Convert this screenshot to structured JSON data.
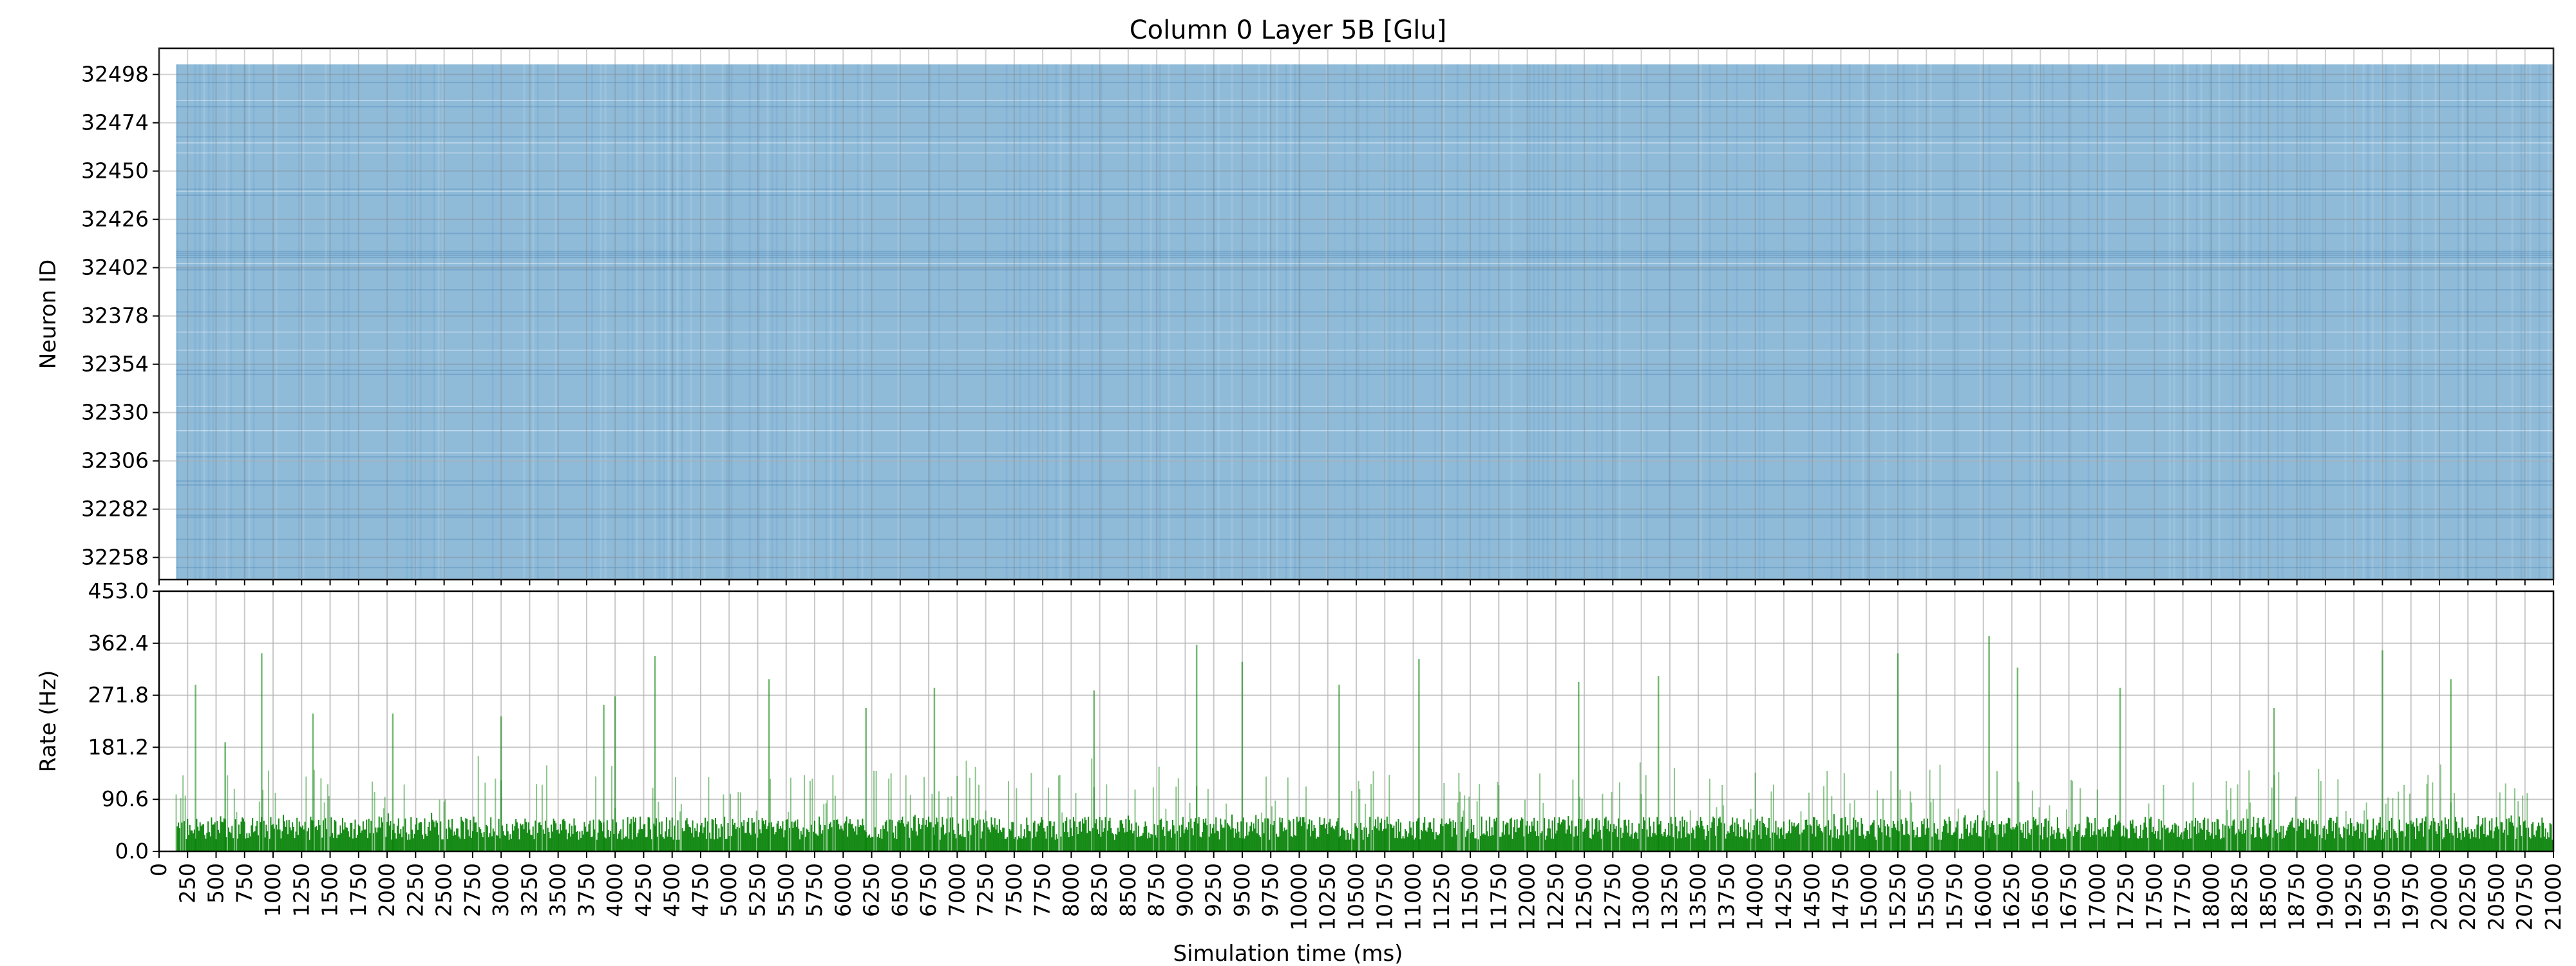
{
  "chart_data": [
    {
      "type": "scatter",
      "title": "Column 0 Layer 5B [Glu]",
      "xlabel": "",
      "ylabel": "Neuron ID",
      "ylim": [
        32247,
        32511
      ],
      "neuron_range": [
        32247,
        32503
      ],
      "time_range": [
        150,
        21000
      ],
      "yticks": [
        32258,
        32282,
        32306,
        32330,
        32354,
        32378,
        32402,
        32426,
        32450,
        32474,
        32498
      ],
      "grid": true,
      "marker_color": "#1f77b4"
    },
    {
      "type": "bar",
      "title": "",
      "xlabel": "Simulation time (ms)",
      "ylabel": "Rate (Hz)",
      "ylim": [
        0,
        453.0
      ],
      "xlim": [
        0,
        21000
      ],
      "yticks": [
        "0.0",
        "90.6",
        "181.2",
        "271.8",
        "362.4",
        "453.0"
      ],
      "xticks": [
        0,
        250,
        500,
        750,
        1000,
        1250,
        1500,
        1750,
        2000,
        2250,
        2500,
        2750,
        3000,
        3250,
        3500,
        3750,
        4000,
        4250,
        4500,
        4750,
        5000,
        5250,
        5500,
        5750,
        6000,
        6250,
        6500,
        6750,
        7000,
        7250,
        7500,
        7750,
        8000,
        8250,
        8500,
        8750,
        9000,
        9250,
        9500,
        9750,
        10000,
        10250,
        10500,
        10750,
        11000,
        11250,
        11500,
        11750,
        12000,
        12250,
        12500,
        12750,
        13000,
        13250,
        13500,
        13750,
        14000,
        14250,
        14500,
        14750,
        15000,
        15250,
        15500,
        15750,
        16000,
        16250,
        16500,
        16750,
        17000,
        17250,
        17500,
        17750,
        18000,
        18250,
        18500,
        18750,
        19000,
        19250,
        19500,
        19750,
        20000,
        20250,
        20500,
        20750,
        21000
      ],
      "grid": true,
      "bar_color": "#008000",
      "typical_rate_hz": 45,
      "peaks": [
        {
          "t": 320,
          "rate": 290
        },
        {
          "t": 580,
          "rate": 190
        },
        {
          "t": 900,
          "rate": 345
        },
        {
          "t": 1350,
          "rate": 240
        },
        {
          "t": 2050,
          "rate": 240
        },
        {
          "t": 3000,
          "rate": 235
        },
        {
          "t": 3900,
          "rate": 255
        },
        {
          "t": 4000,
          "rate": 270
        },
        {
          "t": 4350,
          "rate": 340
        },
        {
          "t": 5350,
          "rate": 300
        },
        {
          "t": 6200,
          "rate": 250
        },
        {
          "t": 6800,
          "rate": 285
        },
        {
          "t": 8200,
          "rate": 280
        },
        {
          "t": 9100,
          "rate": 360
        },
        {
          "t": 9500,
          "rate": 330
        },
        {
          "t": 10350,
          "rate": 290
        },
        {
          "t": 11050,
          "rate": 335
        },
        {
          "t": 12450,
          "rate": 295
        },
        {
          "t": 13150,
          "rate": 305
        },
        {
          "t": 15250,
          "rate": 345
        },
        {
          "t": 16050,
          "rate": 375
        },
        {
          "t": 16300,
          "rate": 320
        },
        {
          "t": 17200,
          "rate": 285
        },
        {
          "t": 18550,
          "rate": 250
        },
        {
          "t": 19500,
          "rate": 350
        },
        {
          "t": 20100,
          "rate": 300
        }
      ]
    }
  ]
}
